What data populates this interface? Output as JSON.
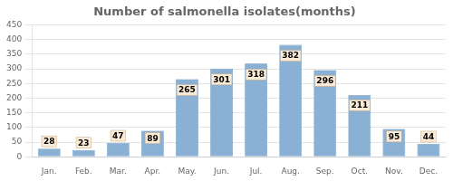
{
  "chart_data": {
    "type": "bar",
    "title": "Number of salmonella isolates(months)",
    "categories": [
      "Jan.",
      "Feb.",
      "Mar.",
      "Apr.",
      "May.",
      "Jun.",
      "Jul.",
      "Aug.",
      "Sep.",
      "Oct.",
      "Nov.",
      "Dec."
    ],
    "values": [
      28,
      23,
      47,
      89,
      265,
      301,
      318,
      382,
      296,
      211,
      95,
      44
    ],
    "color": "#8ab0d4",
    "ylim": [
      0,
      450
    ],
    "yticks": [
      0,
      50,
      100,
      150,
      200,
      250,
      300,
      350,
      400,
      450
    ],
    "grid": true,
    "data_labels": true
  }
}
